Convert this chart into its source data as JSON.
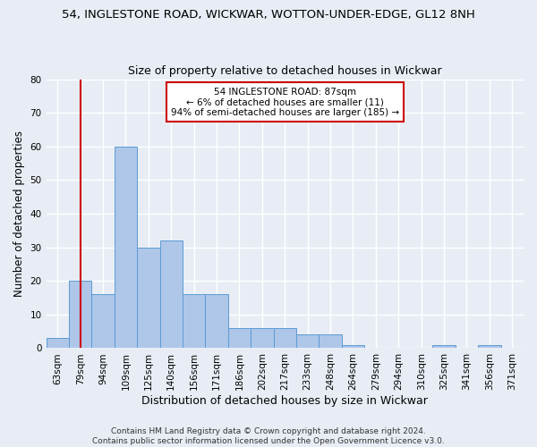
{
  "title_line1": "54, INGLESTONE ROAD, WICKWAR, WOTTON-UNDER-EDGE, GL12 8NH",
  "title_line2": "Size of property relative to detached houses in Wickwar",
  "xlabel": "Distribution of detached houses by size in Wickwar",
  "ylabel": "Number of detached properties",
  "categories": [
    "63sqm",
    "79sqm",
    "94sqm",
    "109sqm",
    "125sqm",
    "140sqm",
    "156sqm",
    "171sqm",
    "186sqm",
    "202sqm",
    "217sqm",
    "233sqm",
    "248sqm",
    "264sqm",
    "279sqm",
    "294sqm",
    "310sqm",
    "325sqm",
    "341sqm",
    "356sqm",
    "371sqm"
  ],
  "values": [
    3,
    20,
    16,
    60,
    30,
    32,
    16,
    16,
    6,
    6,
    6,
    4,
    4,
    1,
    0,
    0,
    0,
    1,
    0,
    1,
    0
  ],
  "bar_color": "#aec6e8",
  "bar_edge_color": "#5b9bd5",
  "vline_x_idx": 1,
  "vline_color": "#cc0000",
  "annotation_text": "54 INGLESTONE ROAD: 87sqm\n← 6% of detached houses are smaller (11)\n94% of semi-detached houses are larger (185) →",
  "annotation_box_color": "#ffffff",
  "annotation_box_edge": "#cc0000",
  "ylim": [
    0,
    80
  ],
  "yticks": [
    0,
    10,
    20,
    30,
    40,
    50,
    60,
    70,
    80
  ],
  "background_color": "#e8edf5",
  "plot_background": "#e8edf5",
  "grid_color": "#ffffff",
  "footer_text": "Contains HM Land Registry data © Crown copyright and database right 2024.\nContains public sector information licensed under the Open Government Licence v3.0.",
  "title1_fontsize": 9.5,
  "title2_fontsize": 9,
  "xlabel_fontsize": 9,
  "ylabel_fontsize": 8.5,
  "tick_fontsize": 7.5,
  "annotation_fontsize": 7.5,
  "footer_fontsize": 6.5
}
